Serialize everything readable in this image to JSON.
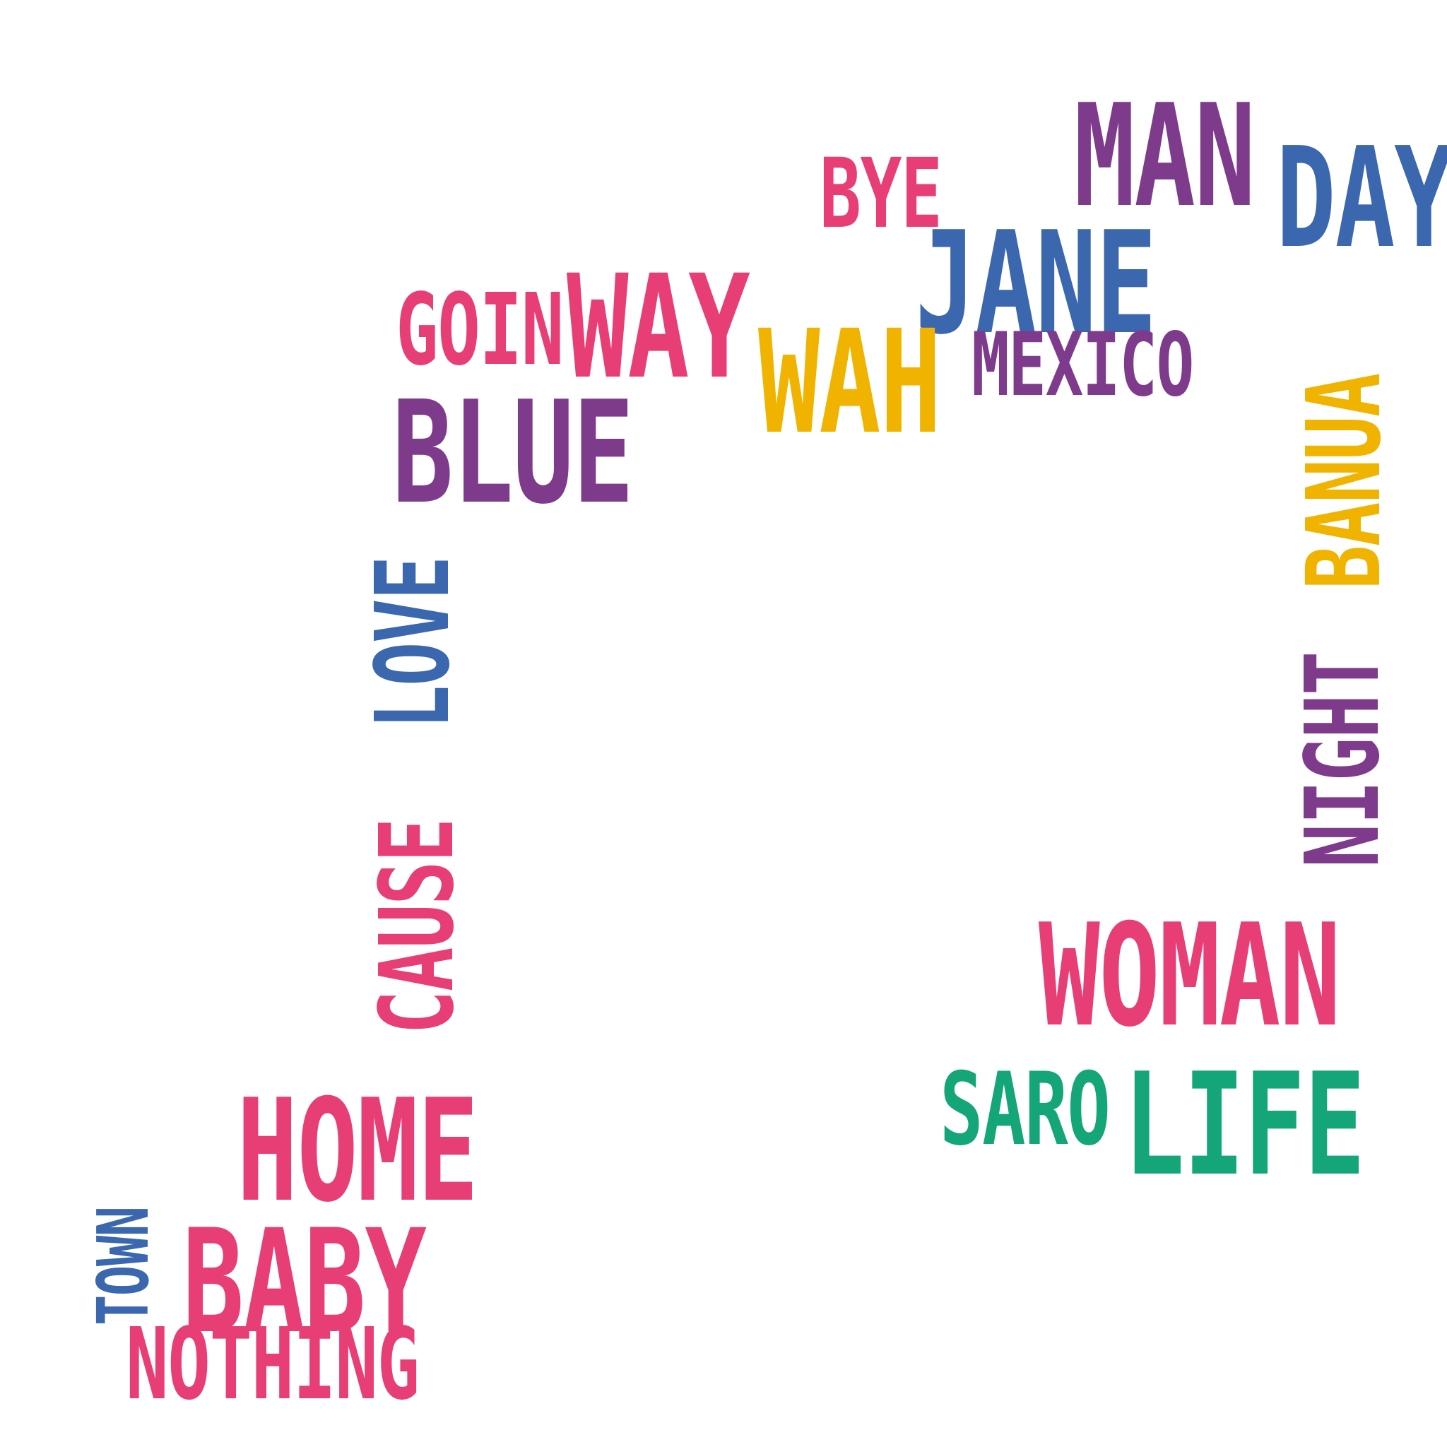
{
  "colors": {
    "pink": "#e83e76",
    "purple": "#7e3b8c",
    "blue": "#3a67ad",
    "yellow": "#f0b400",
    "green": "#14a678"
  },
  "words": {
    "man": "MAN",
    "day": "DAY",
    "bye": "BYE",
    "jane": "JANE",
    "goin": "GOIN",
    "way": "WAY",
    "wah": "WAH",
    "mexico": "MEXICO",
    "blue": "BLUE",
    "love": "LOVE",
    "cause": "CAUSE",
    "night": "NIGHT",
    "banua": "BANUA",
    "woman": "WOMAN",
    "saro": "SARO",
    "life": "LIFE",
    "home": "HOME",
    "baby": "BABY",
    "nothing": "NOTHING",
    "town": "TOWN"
  }
}
